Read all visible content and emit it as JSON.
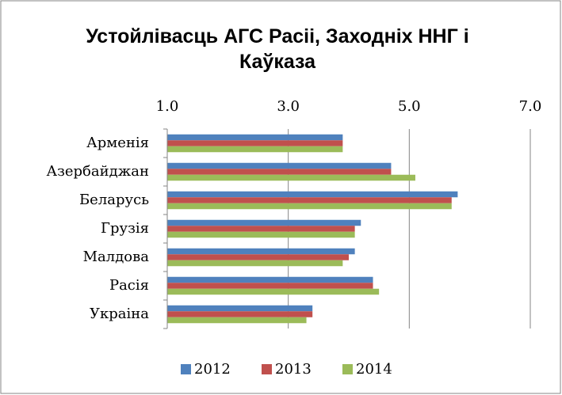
{
  "chart_data": {
    "type": "bar",
    "orientation": "horizontal",
    "title": "Устойлівасць АГС Расіі, Заходніх ННГ і Каўказа",
    "categories": [
      "Арменія",
      "Азербайджан",
      "Беларусь",
      "Грузія",
      "Малдова",
      "Расія",
      "Украіна"
    ],
    "series": [
      {
        "name": "2012",
        "color": "#4f81bd",
        "values": [
          3.9,
          4.7,
          5.8,
          4.2,
          4.1,
          4.4,
          3.4
        ]
      },
      {
        "name": "2013",
        "color": "#c0504d",
        "values": [
          3.9,
          4.7,
          5.7,
          4.1,
          4.0,
          4.4,
          3.4
        ]
      },
      {
        "name": "2014",
        "color": "#9bbb59",
        "values": [
          3.9,
          5.1,
          5.7,
          4.1,
          3.9,
          4.5,
          3.3
        ]
      }
    ],
    "xlim": [
      1,
      7
    ],
    "xticks": [
      {
        "value": 1,
        "label": "1.0"
      },
      {
        "value": 3,
        "label": "3.0"
      },
      {
        "value": 5,
        "label": "5.0"
      },
      {
        "value": 7,
        "label": "7.0"
      }
    ],
    "grid": true,
    "legend": "bottom"
  }
}
